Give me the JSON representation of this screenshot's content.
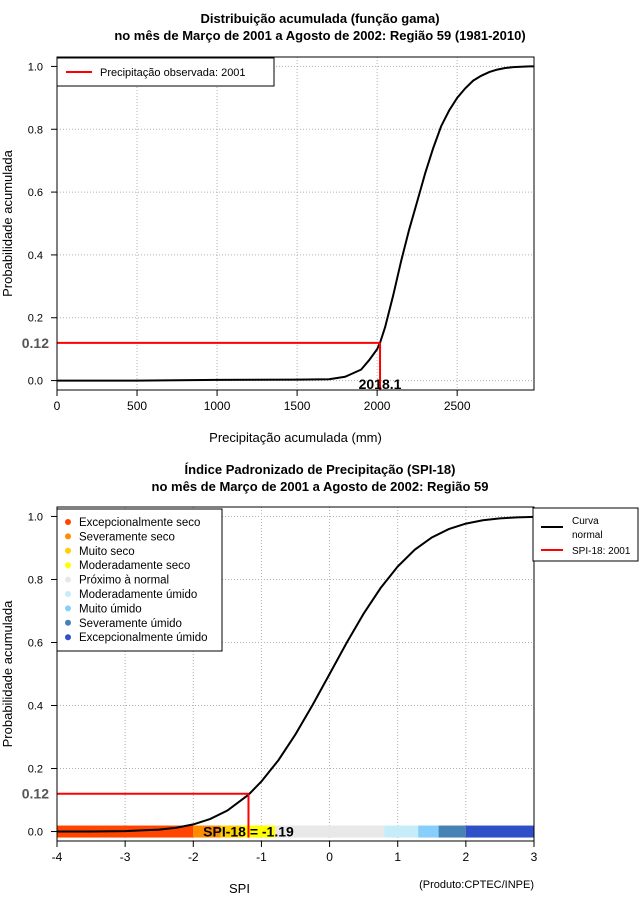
{
  "chart_data": [
    {
      "type": "line",
      "title": "Distribuição acumulada (função gama)",
      "subtitle": "no mês de Março de 2001 a Agosto de 2002: Região 59 (1981-2010)",
      "xlabel": "Precipitação acumulada (mm)",
      "ylabel": "Probabilidade acumulada",
      "xlim": [
        0,
        2980
      ],
      "ylim": [
        -0.03,
        1.03
      ],
      "xticks": [
        0,
        500,
        1000,
        1500,
        2000,
        2500
      ],
      "yticks": [
        0.0,
        0.2,
        0.4,
        0.6,
        0.8,
        1.0
      ],
      "ytick_labels": [
        "0.0",
        "0.2",
        "0.4",
        "0.6",
        "0.8",
        "1.0"
      ],
      "grid": true,
      "legend": {
        "position": "top-left",
        "entries": [
          {
            "label": "Precipitação observada: 2001",
            "color": "#ff0000"
          }
        ]
      },
      "series": [
        {
          "name": "Distribuição gama",
          "color": "#000000",
          "x": [
            0,
            500,
            1000,
            1500,
            1700,
            1800,
            1900,
            1950,
            2000,
            2018.1,
            2050,
            2100,
            2150,
            2200,
            2250,
            2300,
            2350,
            2400,
            2450,
            2500,
            2550,
            2600,
            2650,
            2700,
            2750,
            2800,
            2850,
            2900,
            2950,
            2980
          ],
          "y": [
            0.0,
            0.0,
            0.002,
            0.003,
            0.004,
            0.012,
            0.035,
            0.065,
            0.1,
            0.12,
            0.17,
            0.27,
            0.38,
            0.48,
            0.57,
            0.66,
            0.74,
            0.81,
            0.86,
            0.9,
            0.93,
            0.955,
            0.97,
            0.982,
            0.99,
            0.995,
            0.998,
            0.999,
            1.0,
            1.0
          ]
        }
      ],
      "marker": {
        "x": 2018.1,
        "y": 0.12,
        "x_label": "2018.1",
        "y_label": "0.12",
        "color": "#ff0000"
      }
    },
    {
      "type": "line",
      "title": "Índice Padronizado de Precipitação (SPI-18)",
      "subtitle": "no mês de Março de 2001 a Agosto de 2002: Região 59",
      "xlabel": "SPI",
      "ylabel": "Probabilidade acumulada",
      "xlim": [
        -4,
        3
      ],
      "ylim": [
        -0.03,
        1.03
      ],
      "xticks": [
        -4,
        -3,
        -2,
        -1,
        0,
        1,
        2,
        3
      ],
      "yticks": [
        0.0,
        0.2,
        0.4,
        0.6,
        0.8,
        1.0
      ],
      "ytick_labels": [
        "0.0",
        "0.2",
        "0.4",
        "0.6",
        "0.8",
        "1.0"
      ],
      "grid": true,
      "legend_right": {
        "position": "top-right",
        "entries": [
          {
            "label": "Curva normal",
            "color": "#000000"
          },
          {
            "label": "SPI-18: 2001",
            "color": "#ff0000"
          }
        ]
      },
      "categories_legend": {
        "position": "top-left",
        "entries": [
          {
            "label": "Excepcionalmente seco",
            "color": "#ff4500"
          },
          {
            "label": "Severamente seco",
            "color": "#ff8c00"
          },
          {
            "label": "Muito seco",
            "color": "#ffd000"
          },
          {
            "label": "Moderadamente seco",
            "color": "#ffff00"
          },
          {
            "label": "Próximo à normal",
            "color": "#e8e8e8"
          },
          {
            "label": "Moderadamente úmido",
            "color": "#c6ecfa"
          },
          {
            "label": "Muito úmido",
            "color": "#87cefa"
          },
          {
            "label": "Severamente úmido",
            "color": "#4682b4"
          },
          {
            "label": "Excepcionalmente úmido",
            "color": "#3050c8"
          }
        ]
      },
      "bands": [
        {
          "from": -4.0,
          "to": -2.0,
          "color": "#ff4500"
        },
        {
          "from": -2.0,
          "to": -1.6,
          "color": "#ff8c00"
        },
        {
          "from": -1.6,
          "to": -1.3,
          "color": "#ffd000"
        },
        {
          "from": -1.3,
          "to": -0.8,
          "color": "#ffff00"
        },
        {
          "from": -0.8,
          "to": 0.8,
          "color": "#e8e8e8"
        },
        {
          "from": 0.8,
          "to": 1.3,
          "color": "#c6ecfa"
        },
        {
          "from": 1.3,
          "to": 1.6,
          "color": "#87cefa"
        },
        {
          "from": 1.6,
          "to": 2.0,
          "color": "#4682b4"
        },
        {
          "from": 2.0,
          "to": 3.0,
          "color": "#3050c8"
        }
      ],
      "series": [
        {
          "name": "Curva normal",
          "color": "#000000",
          "x": [
            -4,
            -3.5,
            -3,
            -2.5,
            -2.25,
            -2,
            -1.75,
            -1.5,
            -1.19,
            -1,
            -0.75,
            -0.5,
            -0.25,
            0,
            0.25,
            0.5,
            0.75,
            1,
            1.25,
            1.5,
            1.75,
            2,
            2.25,
            2.5,
            2.75,
            3
          ],
          "y": [
            0.0,
            0.0002,
            0.0013,
            0.0062,
            0.0122,
            0.0228,
            0.0401,
            0.0668,
            0.117,
            0.1587,
            0.2266,
            0.3085,
            0.4013,
            0.5,
            0.5987,
            0.6915,
            0.7734,
            0.8413,
            0.8944,
            0.9332,
            0.9599,
            0.9772,
            0.9878,
            0.9938,
            0.997,
            0.9987
          ]
        }
      ],
      "marker": {
        "x": -1.19,
        "y": 0.12,
        "label": "SPI-18 = -1.19",
        "y_label": "0.12",
        "color": "#ff0000"
      }
    }
  ],
  "footer": "(Produto:CPTEC/INPE)"
}
